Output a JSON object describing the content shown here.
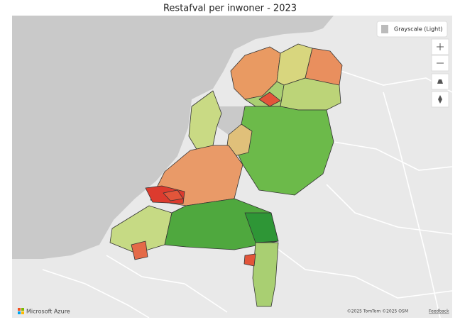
{
  "header": {
    "title": "Restafval per inwoner - 2023"
  },
  "map": {
    "style_label": "Grayscale (Light)",
    "logo": "Microsoft Azure",
    "attribution": "©2025 TomTom ©2025 OSM",
    "feedback": "Feedback"
  }
}
